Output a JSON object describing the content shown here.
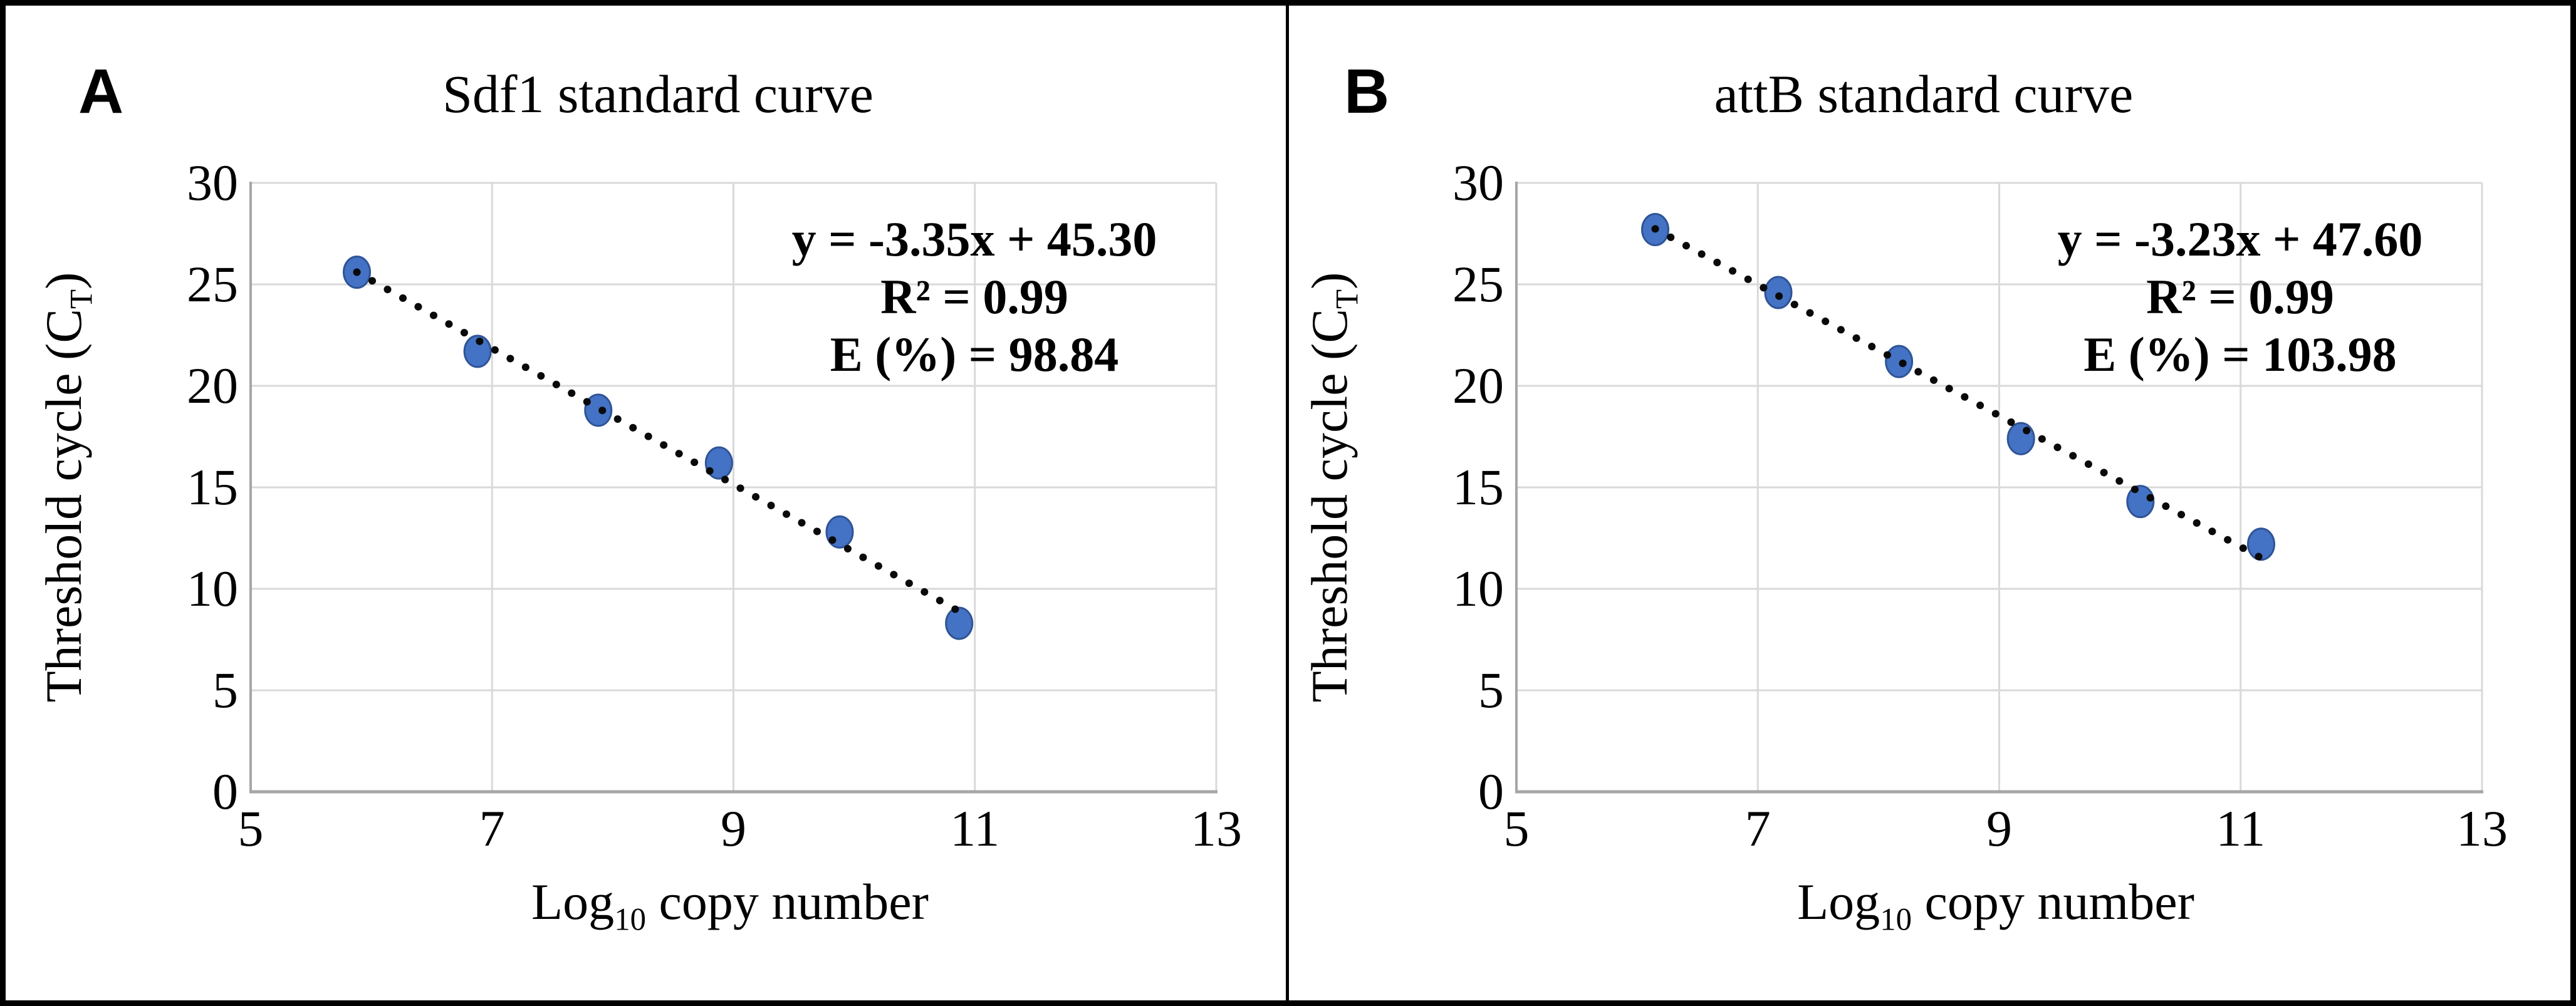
{
  "figure": {
    "panels": [
      {
        "label": "A",
        "title": "Sdf1 standard curve",
        "equation": "y = -3.35x + 45.30",
        "r_squared": "R² = 0.99",
        "efficiency": "E (%) = 98.84",
        "xlabel_main": "Log",
        "xlabel_sub": "10",
        "xlabel_rest": " copy number",
        "ylabel_main": "Threshold cycle (C",
        "ylabel_sub": "T",
        "ylabel_rest": ")"
      },
      {
        "label": "B",
        "title": "attB standard curve",
        "equation": "y = -3.23x + 47.60",
        "r_squared": "R² = 0.99",
        "efficiency": "E (%) = 103.98",
        "xlabel_main": "Log",
        "xlabel_sub": "10",
        "xlabel_rest": " copy number",
        "ylabel_main": "Threshold cycle (C",
        "ylabel_sub": "T",
        "ylabel_rest": ")"
      }
    ]
  },
  "chart_data": [
    {
      "type": "scatter",
      "title": "Sdf1 standard curve",
      "xlabel": "Log10 copy number",
      "ylabel": "Threshold cycle (CT)",
      "xlim": [
        5,
        13
      ],
      "ylim": [
        0,
        30
      ],
      "xticks": [
        5,
        7,
        9,
        11,
        13
      ],
      "yticks": [
        0,
        5,
        10,
        15,
        20,
        25,
        30
      ],
      "grid": true,
      "legend": false,
      "points": [
        [
          5.88,
          25.6
        ],
        [
          6.88,
          21.7
        ],
        [
          7.88,
          18.8
        ],
        [
          8.88,
          16.2
        ],
        [
          9.88,
          12.8
        ],
        [
          10.87,
          8.3
        ]
      ],
      "trendline": {
        "type": "linear",
        "slope": -3.35,
        "intercept": 45.3,
        "x_start": 5.88,
        "x_end": 10.85,
        "style": "dotted"
      },
      "annotations": [
        "y = -3.35x + 45.30",
        "R² = 0.99",
        "E (%) = 98.84"
      ]
    },
    {
      "type": "scatter",
      "title": "attB standard curve",
      "xlabel": "Log10 copy number",
      "ylabel": "Threshold cycle (CT)",
      "xlim": [
        5,
        13
      ],
      "ylim": [
        0,
        30
      ],
      "xticks": [
        5,
        7,
        9,
        11,
        13
      ],
      "yticks": [
        0,
        5,
        10,
        15,
        20,
        25,
        30
      ],
      "grid": true,
      "legend": false,
      "points": [
        [
          6.15,
          27.7
        ],
        [
          7.17,
          24.6
        ],
        [
          8.17,
          21.2
        ],
        [
          9.18,
          17.4
        ],
        [
          10.17,
          14.3
        ],
        [
          11.17,
          12.2
        ]
      ],
      "trendline": {
        "type": "linear",
        "slope": -3.23,
        "intercept": 47.6,
        "x_start": 6.15,
        "x_end": 11.17,
        "style": "dotted"
      },
      "annotations": [
        "y = -3.23x + 47.60",
        "R² = 0.99",
        "E (%) = 103.98"
      ]
    }
  ],
  "colors": {
    "marker": "#4472C4",
    "marker_edge": "#2F5496",
    "trendline": "#0a0a0a",
    "gridline": "#D9D9D9",
    "axis": "#A6A6A6",
    "text": "#000000",
    "border": "#000000"
  }
}
